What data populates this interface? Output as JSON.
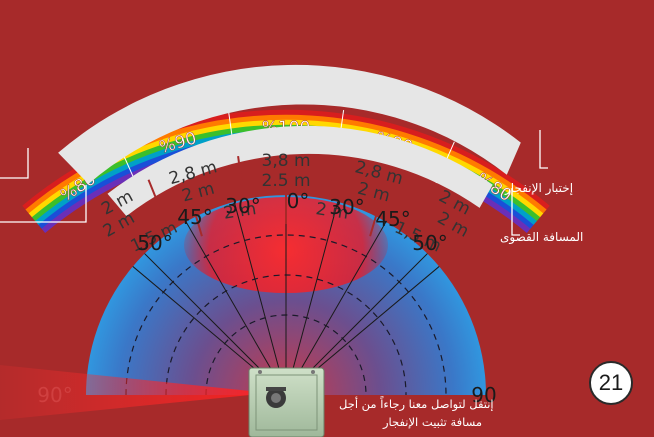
{
  "colors": {
    "background": "#a72a2a",
    "band_fill": "#e6e6e6",
    "band_text": "#333333",
    "label_white": "#ffffff"
  },
  "rainbow_labels": [
    "%80",
    "%90",
    "%100",
    "%90",
    "%80"
  ],
  "band_outer": [
    "2 m",
    "2,8 m",
    "3,8 m",
    "2,8 m",
    "2 m"
  ],
  "band_middle": [
    "2 m",
    "2 m",
    "2.5 m",
    "2 m",
    "2 m"
  ],
  "band_inner": [
    "1,5 m",
    "2 m",
    "2 m",
    "1,5 m"
  ],
  "angles": {
    "deg_0": "0°",
    "left_30": "30°",
    "right_30": "30°",
    "left_45": "45°",
    "right_45": "45°",
    "left_50": "50°",
    "right_50": "50°",
    "left_90": "90°",
    "right_90": "90"
  },
  "labels": {
    "test_blast": "إختبار الإنفجار",
    "max_distance": "المسافة القصوى",
    "contact_line1": "إنتقل لتواصل معنا رجاءاً من أجل",
    "contact_line2": "مسافة تثبيت الإنفجار"
  },
  "page_number": "21",
  "icons": [
    "device-photo-icon"
  ]
}
